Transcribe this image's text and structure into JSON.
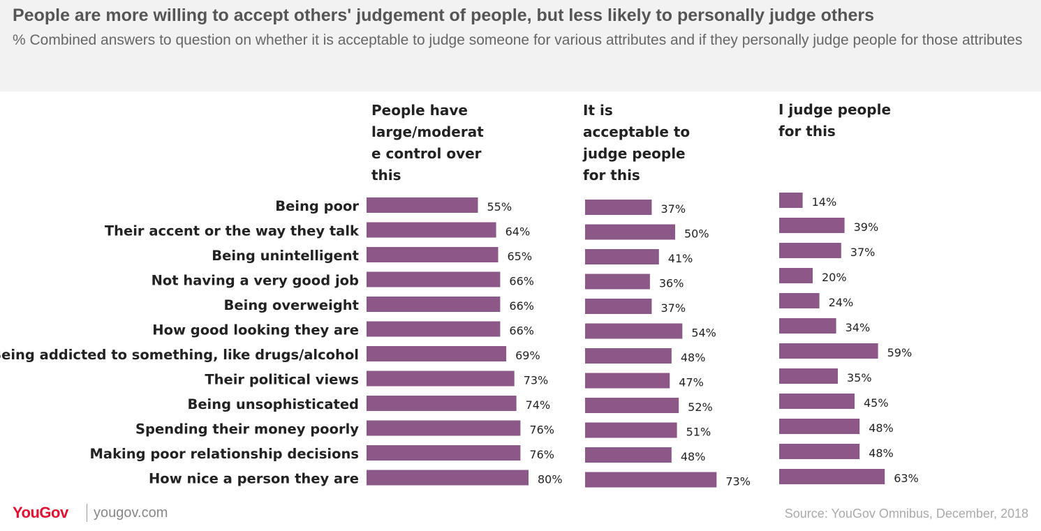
{
  "header": {
    "title": "People are more willing to accept others' judgement of people, but less likely to personally judge others",
    "subtitle": "% Combined answers to question on whether it is acceptable to judge someone for various attributes and if they personally judge people for those attributes"
  },
  "footer": {
    "logo": "YouGov",
    "url": "yougov.com",
    "source": "Source: YouGov Omnibus, December, 2018"
  },
  "colors": {
    "bar": "#8b5887",
    "header_bg": "#f2f2f2",
    "logo": "#e3102f"
  },
  "chart_data": {
    "type": "bar",
    "orientation": "horizontal",
    "categories": [
      "Being poor",
      "Their accent or the way they talk",
      "Being unintelligent",
      "Not having a very good job",
      "Being overweight",
      "How good looking they are",
      "Being addicted to something, like drugs/alcohol",
      "Their political views",
      "Being unsophisticated",
      "Spending their money poorly",
      "Making poor relationship decisions",
      "How nice a person they are"
    ],
    "series": [
      {
        "name": "People have large/moderate control over this",
        "name_lines": [
          "People have",
          "large/moderat",
          "e control over",
          "this"
        ],
        "values": [
          55,
          64,
          65,
          66,
          66,
          66,
          69,
          73,
          74,
          76,
          76,
          80
        ],
        "labels": [
          "55%",
          "64%",
          "65%",
          "66%",
          "66%",
          "66%",
          "69%",
          "73%",
          "74%",
          "76%",
          "76%",
          "80%"
        ]
      },
      {
        "name": "It is acceptable to judge people for this",
        "name_lines": [
          "It is",
          "acceptable to",
          "judge people",
          "for this"
        ],
        "values": [
          37,
          50,
          41,
          36,
          37,
          54,
          48,
          47,
          52,
          51,
          48,
          73
        ],
        "labels": [
          "37%",
          "50%",
          "41%",
          "36%",
          "37%",
          "54%",
          "48%",
          "47%",
          "52%",
          "51%",
          "48%",
          "73%"
        ]
      },
      {
        "name": "I judge people for this",
        "name_lines": [
          "I judge people",
          "for this"
        ],
        "values": [
          14,
          39,
          37,
          20,
          24,
          34,
          59,
          35,
          45,
          48,
          48,
          63
        ],
        "labels": [
          "14%",
          "39%",
          "37%",
          "20%",
          "24%",
          "34%",
          "59%",
          "35%",
          "45%",
          "48%",
          "48%",
          "63%"
        ]
      }
    ]
  }
}
